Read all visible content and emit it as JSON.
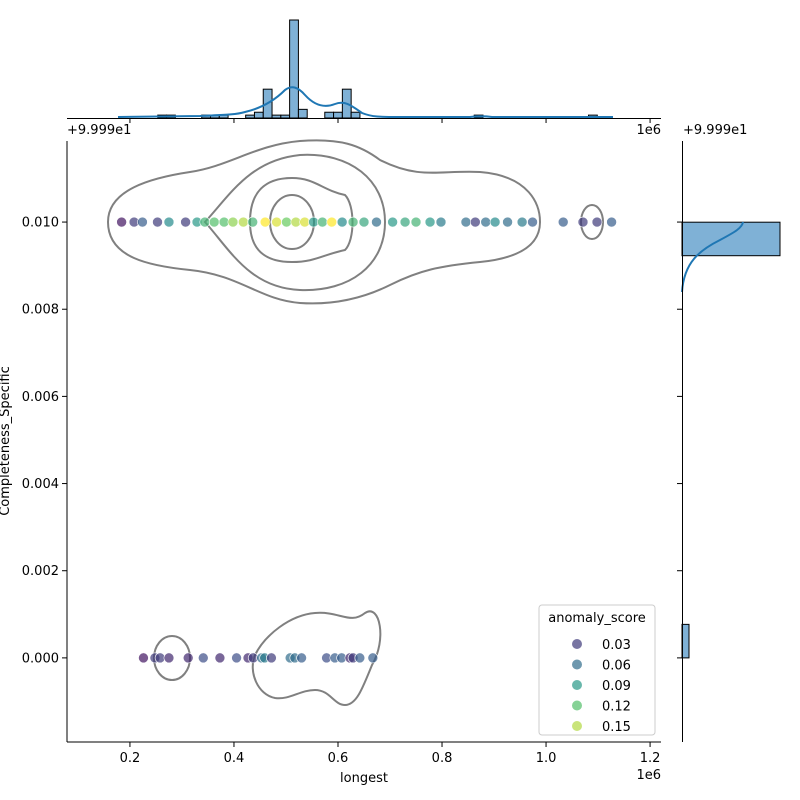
{
  "chart_data": {
    "type": "scatter",
    "subtype": "jointplot",
    "xlabel": "longest",
    "ylabel": "Completeness_Specific",
    "x_multiplier_text": "1e6",
    "y_offset_text": "+9.999e1",
    "xlim": [
      0.079,
      1.221
    ],
    "ylim": [
      -0.00193,
      0.01186
    ],
    "x_ticks": [
      "0.2",
      "0.4",
      "0.6",
      "0.8",
      "1.0",
      "1.2"
    ],
    "x_tick_values": [
      0.2,
      0.4,
      0.6,
      0.8,
      1.0,
      1.2
    ],
    "y_ticks": [
      "0.000",
      "0.002",
      "0.004",
      "0.006",
      "0.008",
      "0.010"
    ],
    "y_tick_values": [
      0.0,
      0.002,
      0.004,
      0.006,
      0.008,
      0.01
    ],
    "grid": false,
    "hue": "anomaly_score",
    "colormap": "viridis",
    "hue_range": [
      0.0,
      0.17
    ],
    "legend": {
      "title": "anomaly_score",
      "placement": "lower-right",
      "entries": [
        {
          "label": "0.03",
          "value": 0.03
        },
        {
          "label": "0.06",
          "value": 0.06
        },
        {
          "label": "0.09",
          "value": 0.09
        },
        {
          "label": "0.12",
          "value": 0.12
        },
        {
          "label": "0.15",
          "value": 0.15
        }
      ]
    },
    "points": [
      {
        "x": 0.184,
        "y": 0.01,
        "score": 0.01
      },
      {
        "x": 0.208,
        "y": 0.01,
        "score": 0.03
      },
      {
        "x": 0.224,
        "y": 0.01,
        "score": 0.05
      },
      {
        "x": 0.253,
        "y": 0.01,
        "score": 0.03
      },
      {
        "x": 0.275,
        "y": 0.01,
        "score": 0.08
      },
      {
        "x": 0.307,
        "y": 0.01,
        "score": 0.03
      },
      {
        "x": 0.329,
        "y": 0.01,
        "score": 0.09
      },
      {
        "x": 0.344,
        "y": 0.01,
        "score": 0.11
      },
      {
        "x": 0.362,
        "y": 0.01,
        "score": 0.12
      },
      {
        "x": 0.381,
        "y": 0.01,
        "score": 0.12
      },
      {
        "x": 0.398,
        "y": 0.01,
        "score": 0.14
      },
      {
        "x": 0.418,
        "y": 0.01,
        "score": 0.15
      },
      {
        "x": 0.436,
        "y": 0.01,
        "score": 0.11
      },
      {
        "x": 0.46,
        "y": 0.01,
        "score": 0.17
      },
      {
        "x": 0.482,
        "y": 0.01,
        "score": 0.16
      },
      {
        "x": 0.501,
        "y": 0.01,
        "score": 0.13
      },
      {
        "x": 0.519,
        "y": 0.01,
        "score": 0.15
      },
      {
        "x": 0.536,
        "y": 0.01,
        "score": 0.16
      },
      {
        "x": 0.553,
        "y": 0.01,
        "score": 0.09
      },
      {
        "x": 0.57,
        "y": 0.01,
        "score": 0.11
      },
      {
        "x": 0.588,
        "y": 0.01,
        "score": 0.17
      },
      {
        "x": 0.608,
        "y": 0.01,
        "score": 0.08
      },
      {
        "x": 0.629,
        "y": 0.01,
        "score": 0.11
      },
      {
        "x": 0.65,
        "y": 0.01,
        "score": 0.1
      },
      {
        "x": 0.674,
        "y": 0.01,
        "score": 0.06
      },
      {
        "x": 0.705,
        "y": 0.01,
        "score": 0.09
      },
      {
        "x": 0.729,
        "y": 0.01,
        "score": 0.1
      },
      {
        "x": 0.75,
        "y": 0.01,
        "score": 0.11
      },
      {
        "x": 0.777,
        "y": 0.01,
        "score": 0.09
      },
      {
        "x": 0.798,
        "y": 0.01,
        "score": 0.07
      },
      {
        "x": 0.846,
        "y": 0.01,
        "score": 0.06
      },
      {
        "x": 0.864,
        "y": 0.01,
        "score": 0.03
      },
      {
        "x": 0.884,
        "y": 0.01,
        "score": 0.06
      },
      {
        "x": 0.902,
        "y": 0.01,
        "score": 0.08
      },
      {
        "x": 0.926,
        "y": 0.01,
        "score": 0.06
      },
      {
        "x": 0.954,
        "y": 0.01,
        "score": 0.07
      },
      {
        "x": 0.974,
        "y": 0.01,
        "score": 0.05
      },
      {
        "x": 1.033,
        "y": 0.01,
        "score": 0.05
      },
      {
        "x": 1.071,
        "y": 0.01,
        "score": 0.03
      },
      {
        "x": 1.098,
        "y": 0.01,
        "score": 0.03
      },
      {
        "x": 1.126,
        "y": 0.01,
        "score": 0.05
      },
      {
        "x": 0.226,
        "y": 0.0,
        "score": 0.01
      },
      {
        "x": 0.248,
        "y": 0.0,
        "score": 0.03
      },
      {
        "x": 0.258,
        "y": 0.0,
        "score": 0.03
      },
      {
        "x": 0.275,
        "y": 0.0,
        "score": 0.02
      },
      {
        "x": 0.312,
        "y": 0.0,
        "score": 0.02
      },
      {
        "x": 0.341,
        "y": 0.0,
        "score": 0.04
      },
      {
        "x": 0.373,
        "y": 0.0,
        "score": 0.02
      },
      {
        "x": 0.405,
        "y": 0.0,
        "score": 0.04
      },
      {
        "x": 0.427,
        "y": 0.0,
        "score": 0.02
      },
      {
        "x": 0.437,
        "y": 0.0,
        "score": 0.03
      },
      {
        "x": 0.453,
        "y": 0.0,
        "score": 0.06
      },
      {
        "x": 0.459,
        "y": 0.0,
        "score": 0.07
      },
      {
        "x": 0.472,
        "y": 0.0,
        "score": 0.03
      },
      {
        "x": 0.508,
        "y": 0.0,
        "score": 0.06
      },
      {
        "x": 0.517,
        "y": 0.0,
        "score": 0.06
      },
      {
        "x": 0.53,
        "y": 0.0,
        "score": 0.05
      },
      {
        "x": 0.578,
        "y": 0.0,
        "score": 0.04
      },
      {
        "x": 0.594,
        "y": 0.0,
        "score": 0.05
      },
      {
        "x": 0.607,
        "y": 0.0,
        "score": 0.05
      },
      {
        "x": 0.623,
        "y": 0.0,
        "score": 0.02
      },
      {
        "x": 0.629,
        "y": 0.0,
        "score": 0.03
      },
      {
        "x": 0.642,
        "y": 0.0,
        "score": 0.05
      },
      {
        "x": 0.667,
        "y": 0.0,
        "score": 0.05
      }
    ],
    "marginal_x_hist": {
      "bin_start": 0.169,
      "bin_width": 0.0169,
      "counts": [
        0,
        0,
        0,
        0,
        0,
        1,
        1,
        0,
        0,
        0,
        1,
        1,
        1,
        0,
        0,
        1,
        2,
        10,
        1,
        1,
        34,
        3,
        0,
        0,
        2,
        2,
        10,
        2,
        0,
        0,
        0,
        0,
        0,
        0,
        0,
        0,
        0,
        0,
        0,
        0,
        0,
        1,
        0,
        0,
        0,
        0,
        0,
        0,
        0,
        0,
        0,
        0,
        0,
        0,
        1,
        0,
        0
      ],
      "color": "#7fb1d6"
    },
    "marginal_y_hist": {
      "bin_start": 0.0,
      "bin_width": 0.000769,
      "counts": [
        23,
        0,
        0,
        0,
        0,
        0,
        0,
        0,
        0,
        0,
        0,
        0,
        322
      ],
      "color": "#7fb1d6"
    },
    "kde_color": "#1f77b4",
    "contour_color": "#808080"
  }
}
